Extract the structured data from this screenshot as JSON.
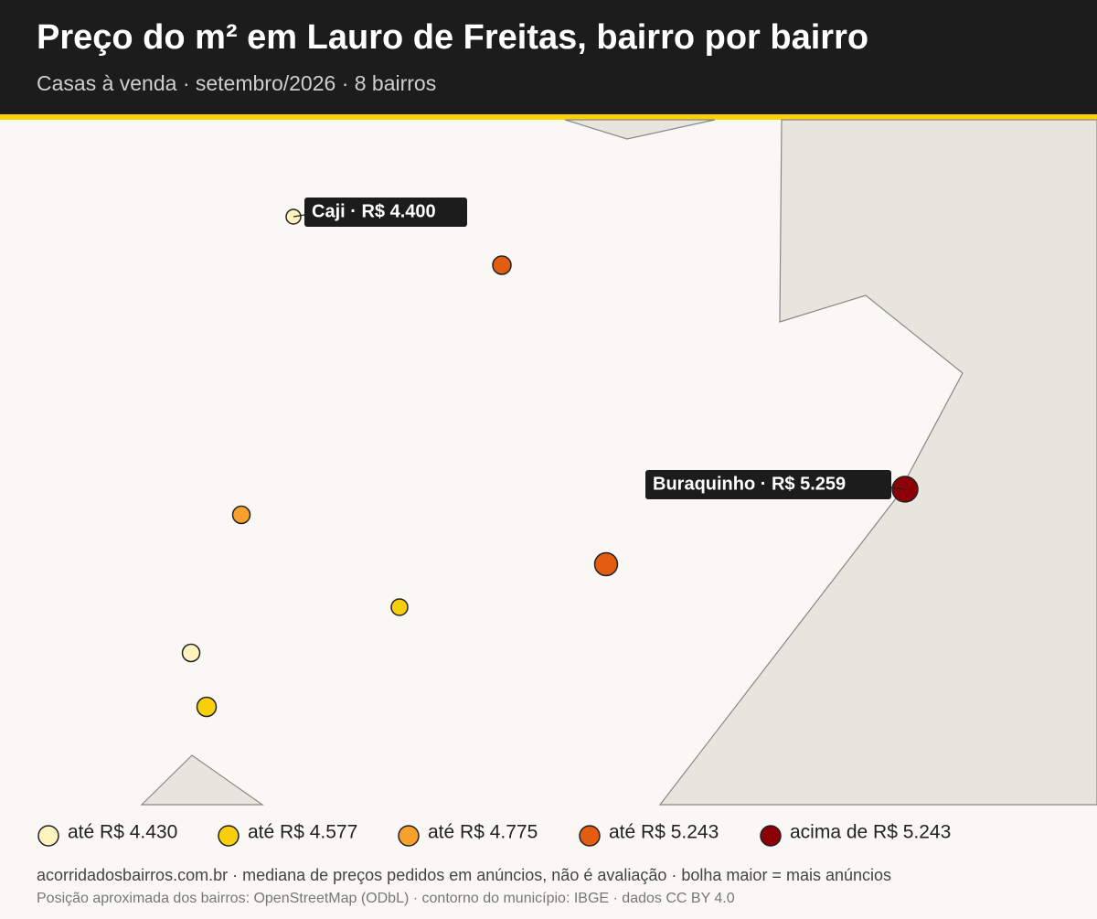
{
  "header": {
    "title": "Preço do m² em Lauro de Freitas, bairro por bairro",
    "subtitle": "Casas à venda · setembro/2026 · 8 bairros"
  },
  "annotations": [
    {
      "label": "Caji · R$ 4.400"
    },
    {
      "label": "Buraquinho · R$ 5.259"
    }
  ],
  "legend": [
    {
      "label": "até R$ 4.430",
      "color": "#fff3bf"
    },
    {
      "label": "até R$ 4.577",
      "color": "#f7cf0a"
    },
    {
      "label": "até R$ 4.775",
      "color": "#f7a02c"
    },
    {
      "label": "até R$ 5.243",
      "color": "#e25c12"
    },
    {
      "label": "acima de R$ 5.243",
      "color": "#8e0008"
    }
  ],
  "footer": {
    "source": "acorridadosbairros.com.br · mediana de preços pedidos em anúncios, não é avaliação · bolha maior = mais anúncios",
    "attribution": "Posição aproximada dos bairros: OpenStreetMap (ODbL) · contorno do município: IBGE · dados CC BY 4.0"
  }
}
